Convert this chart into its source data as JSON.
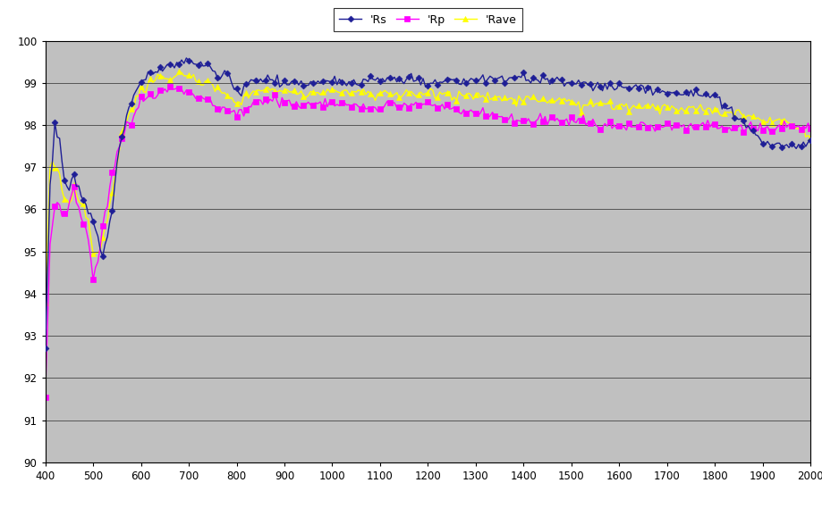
{
  "title": "",
  "xlabel": "",
  "ylabel": "",
  "xlim": [
    400,
    2000
  ],
  "ylim": [
    90,
    100
  ],
  "yticks": [
    90,
    91,
    92,
    93,
    94,
    95,
    96,
    97,
    98,
    99,
    100
  ],
  "xticks": [
    400,
    500,
    600,
    700,
    800,
    900,
    1000,
    1100,
    1200,
    1300,
    1400,
    1500,
    1600,
    1700,
    1800,
    1900,
    2000
  ],
  "background_color": "#C0C0C0",
  "legend_labels": [
    "'Rs",
    "'Rp",
    "'Rave"
  ],
  "Rs_color": "#1E1E96",
  "Rp_color": "#FF00FF",
  "Rave_color": "#FFFF00",
  "Rs_marker": "D",
  "Rp_marker": "s",
  "Rave_marker": "^",
  "line_width": 1.0,
  "marker_size": 3.5,
  "figsize": [
    9.2,
    5.69
  ],
  "dpi": 100,
  "grid_color": "#808080",
  "Rs_x": [
    400,
    410,
    420,
    430,
    440,
    450,
    460,
    470,
    480,
    490,
    500,
    510,
    520,
    530,
    540,
    550,
    560,
    570,
    580,
    590,
    600,
    620,
    640,
    660,
    680,
    700,
    720,
    740,
    760,
    780,
    800,
    850,
    900,
    950,
    1000,
    1050,
    1100,
    1200,
    1300,
    1400,
    1500,
    1600,
    1700,
    1800,
    1900,
    1950,
    2000
  ],
  "Rs_y": [
    92.7,
    96.5,
    98.0,
    97.7,
    96.6,
    96.5,
    96.7,
    96.5,
    96.2,
    96.0,
    95.8,
    95.4,
    95.0,
    95.3,
    96.0,
    97.0,
    97.8,
    98.2,
    98.5,
    98.8,
    99.0,
    99.2,
    99.35,
    99.4,
    99.45,
    99.5,
    99.45,
    99.4,
    99.2,
    99.1,
    98.8,
    99.1,
    99.0,
    99.0,
    99.1,
    99.0,
    99.1,
    99.0,
    99.1,
    99.1,
    99.0,
    98.9,
    98.8,
    98.7,
    97.6,
    97.5,
    97.5
  ],
  "Rp_x": [
    400,
    410,
    420,
    430,
    440,
    450,
    460,
    470,
    480,
    490,
    500,
    510,
    520,
    530,
    540,
    550,
    560,
    570,
    580,
    590,
    600,
    620,
    640,
    660,
    680,
    700,
    720,
    740,
    760,
    780,
    800,
    850,
    900,
    950,
    1000,
    1100,
    1200,
    1300,
    1400,
    1500,
    1600,
    1700,
    1800,
    1900,
    1950,
    2000
  ],
  "Rp_y": [
    91.5,
    95.2,
    96.0,
    96.0,
    95.8,
    96.0,
    96.5,
    96.0,
    95.7,
    95.4,
    94.3,
    94.8,
    95.5,
    96.2,
    96.8,
    97.3,
    97.7,
    98.0,
    98.2,
    98.4,
    98.6,
    98.7,
    98.8,
    98.85,
    98.85,
    98.8,
    98.6,
    98.6,
    98.4,
    98.35,
    98.2,
    98.6,
    98.5,
    98.5,
    98.5,
    98.4,
    98.5,
    98.3,
    98.1,
    98.1,
    98.0,
    98.0,
    98.0,
    97.9,
    98.0,
    98.0
  ],
  "Rave_x": [
    400,
    410,
    420,
    430,
    440,
    450,
    460,
    470,
    480,
    490,
    500,
    510,
    520,
    530,
    540,
    550,
    560,
    570,
    580,
    590,
    600,
    620,
    640,
    660,
    680,
    700,
    720,
    740,
    760,
    780,
    800,
    850,
    900,
    950,
    1000,
    1100,
    1200,
    1300,
    1400,
    1500,
    1600,
    1700,
    1800,
    1900,
    1950,
    2000
  ],
  "Rave_y": [
    93.9,
    97.0,
    97.1,
    96.8,
    96.2,
    96.2,
    96.6,
    96.2,
    96.0,
    95.7,
    95.0,
    95.1,
    95.3,
    95.8,
    96.4,
    97.1,
    97.8,
    98.1,
    98.35,
    98.6,
    98.8,
    99.0,
    99.1,
    99.15,
    99.15,
    99.15,
    99.05,
    99.0,
    98.8,
    98.75,
    98.5,
    98.85,
    98.75,
    98.75,
    98.8,
    98.75,
    98.75,
    98.7,
    98.6,
    98.55,
    98.45,
    98.4,
    98.35,
    98.15,
    98.1,
    97.75
  ]
}
